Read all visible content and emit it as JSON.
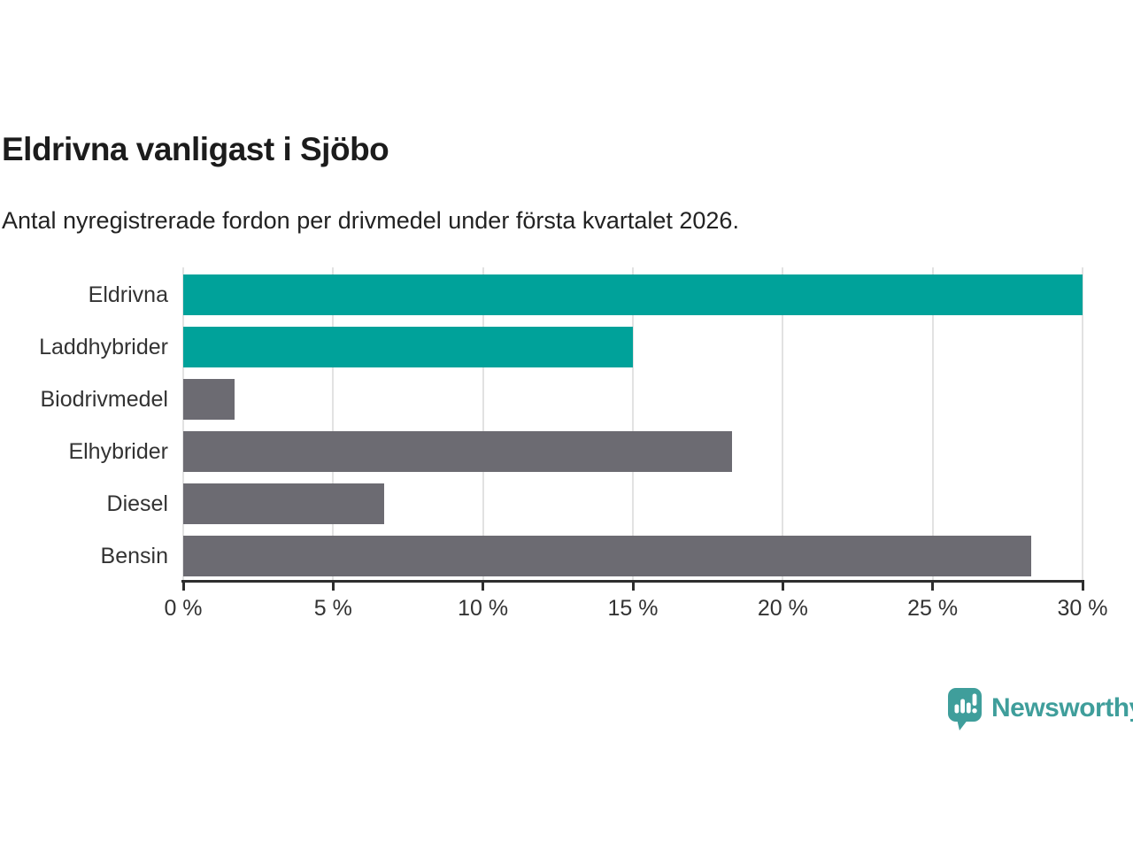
{
  "chart_data": {
    "type": "bar",
    "orientation": "horizontal",
    "title": "Eldrivna vanligast i Sjöbo",
    "subtitle": "Antal nyregistrerade fordon per drivmedel under första kvartalet 2026.",
    "categories": [
      "Eldrivna",
      "Laddhybrider",
      "Biodrivmedel",
      "Elhybrider",
      "Diesel",
      "Bensin"
    ],
    "values": [
      30.0,
      15.0,
      1.7,
      18.3,
      6.7,
      28.3
    ],
    "bar_colors": [
      "#00a29a",
      "#00a29a",
      "#6c6b72",
      "#6c6b72",
      "#6c6b72",
      "#6c6b72"
    ],
    "highlight_color": "#00a29a",
    "default_color": "#6c6b72",
    "x_ticks": [
      0,
      5,
      10,
      15,
      20,
      25,
      30
    ],
    "x_tick_labels": [
      "0 %",
      "5 %",
      "10 %",
      "15 %",
      "20 %",
      "25 %",
      "30 %"
    ],
    "xlim": [
      0,
      30
    ],
    "xlabel": "",
    "ylabel": "",
    "grid": "vertical-only",
    "gridline_color": "#e2e2e2",
    "axis_line_color": "#2e2e2e",
    "legend": "none"
  },
  "brand": {
    "name": "Newsworthy",
    "logo_color": "#3f9e9b",
    "logo_icon": "speech-bubble-with-bar-chart-and-exclamation"
  }
}
